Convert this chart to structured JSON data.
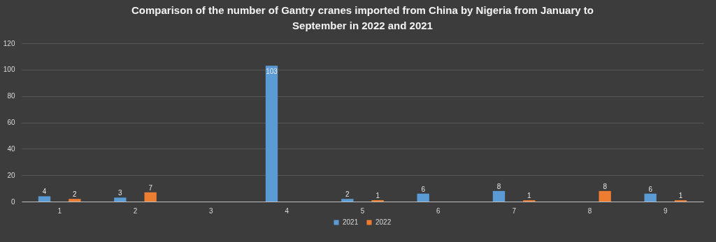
{
  "chart_data": {
    "type": "bar",
    "title": "Comparison of the number of Gantry cranes imported from China by Nigeria from January to September in 2022 and 2021",
    "categories": [
      "1",
      "2",
      "3",
      "4",
      "5",
      "6",
      "7",
      "8",
      "9"
    ],
    "series": [
      {
        "name": "2021",
        "color": "#5b9bd5",
        "values": [
          4,
          3,
          null,
          103,
          2,
          6,
          8,
          null,
          6
        ]
      },
      {
        "name": "2022",
        "color": "#ed7d31",
        "values": [
          2,
          7,
          null,
          null,
          1,
          null,
          1,
          8,
          1
        ]
      }
    ],
    "ylim": [
      0,
      120
    ],
    "yticks": [
      0,
      20,
      40,
      60,
      80,
      100,
      120
    ],
    "grid": "y",
    "legend": "bottom",
    "data_labels": true
  }
}
